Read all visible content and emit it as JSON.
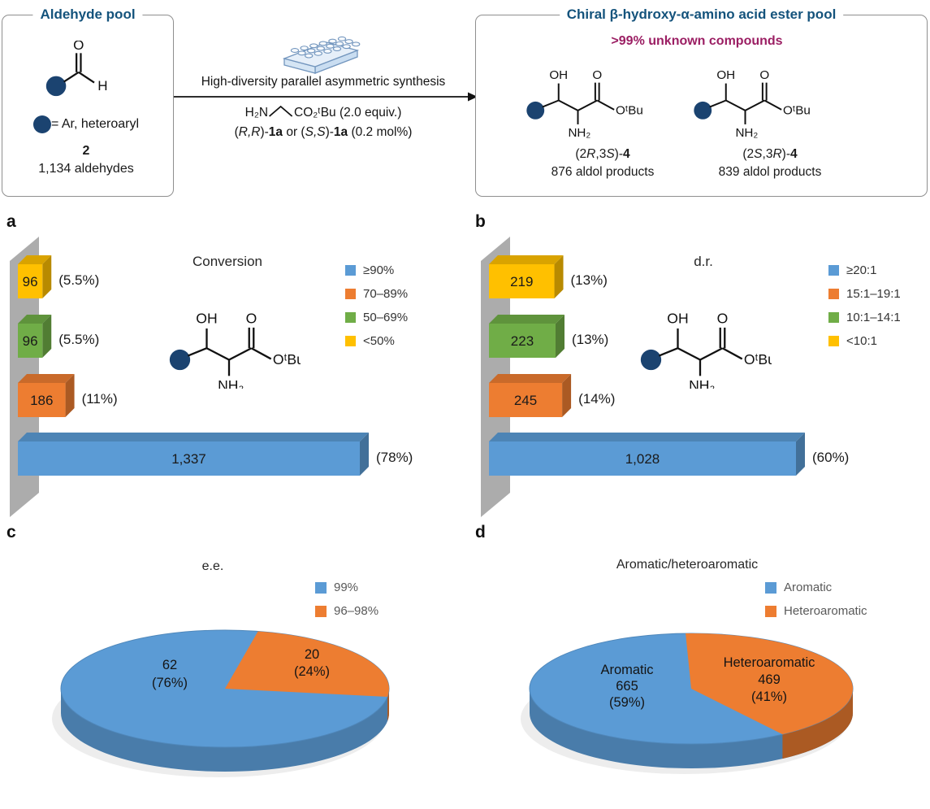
{
  "panels": {
    "a": "a",
    "b": "b",
    "c": "c",
    "d": "d"
  },
  "palette": {
    "blue": "#5B9BD5",
    "orange": "#ED7D31",
    "green": "#70AD47",
    "yellow": "#FFC000",
    "wall_gray": "#ACACAC",
    "navy_dot": "#1B4370",
    "header_blue": "#14537C",
    "magenta": "#9B1E63"
  },
  "scheme": {
    "left_box": {
      "title": "Aldehyde pool",
      "circle_legend": "= Ar, heteroaryl",
      "compound_number": "2",
      "pool_count": "1,134 aldehydes"
    },
    "middle": {
      "condition": "High-diversity parallel asymmetric synthesis",
      "amine": "H₂N",
      "ester": "CO₂ᵗBu (2.0 equiv.)",
      "catalyst_parts": [
        {
          "t": "("
        },
        {
          "t": "R,R",
          "i": true
        },
        {
          "t": ")-"
        },
        {
          "t": "1a",
          "b": true
        },
        {
          "t": " or ("
        },
        {
          "t": "S,S",
          "i": true
        },
        {
          "t": ")-"
        },
        {
          "t": "1a",
          "b": true
        },
        {
          "t": " (0.2 mol%)"
        }
      ]
    },
    "right_box": {
      "title": "Chiral β-hydroxy-α-amino acid ester pool",
      "subtitle": ">99% unknown compounds",
      "products": [
        {
          "label_parts": [
            {
              "t": "(2"
            },
            {
              "t": "R",
              "i": true
            },
            {
              "t": ",3"
            },
            {
              "t": "S",
              "i": true
            },
            {
              "t": ")-"
            },
            {
              "t": "4",
              "b": true
            }
          ],
          "count": "876 aldol products"
        },
        {
          "label_parts": [
            {
              "t": "(2"
            },
            {
              "t": "S",
              "i": true
            },
            {
              "t": ",3"
            },
            {
              "t": "R",
              "i": true
            },
            {
              "t": ")-"
            },
            {
              "t": "4",
              "b": true
            }
          ],
          "count": "839 aldol products"
        }
      ]
    },
    "structure_labels": {
      "oh": "OH",
      "o": "O",
      "otbu": "OᵗBu",
      "nh2": "NH₂",
      "h": "H"
    }
  },
  "chart_data": [
    {
      "panel": "a",
      "type": "bar",
      "style": "3d-horizontal",
      "title": "Conversion",
      "bars": [
        {
          "category": "<50%",
          "value": 96,
          "value_label": "96",
          "pct_label": "(5.5%)",
          "color": "#FFC000"
        },
        {
          "category": "50–69%",
          "value": 96,
          "value_label": "96",
          "pct_label": "(5.5%)",
          "color": "#70AD47"
        },
        {
          "category": "70–89%",
          "value": 186,
          "value_label": "186",
          "pct_label": "(11%)",
          "color": "#ED7D31"
        },
        {
          "category": "≥90%",
          "value": 1337,
          "value_label": "1,337",
          "pct_label": "(78%)",
          "color": "#5B9BD5"
        }
      ],
      "legend": [
        {
          "label": "≥90%",
          "color": "#5B9BD5"
        },
        {
          "label": "70–89%",
          "color": "#ED7D31"
        },
        {
          "label": "50–69%",
          "color": "#70AD47"
        },
        {
          "label": "<50%",
          "color": "#FFC000"
        }
      ],
      "legend_position": "right",
      "grid": false
    },
    {
      "panel": "b",
      "type": "bar",
      "style": "3d-horizontal",
      "title": "d.r.",
      "bars": [
        {
          "category": "<10:1",
          "value": 219,
          "value_label": "219",
          "pct_label": "(13%)",
          "color": "#FFC000"
        },
        {
          "category": "10:1–14:1",
          "value": 223,
          "value_label": "223",
          "pct_label": "(13%)",
          "color": "#70AD47"
        },
        {
          "category": "15:1–19:1",
          "value": 245,
          "value_label": "245",
          "pct_label": "(14%)",
          "color": "#ED7D31"
        },
        {
          "category": "≥20:1",
          "value": 1028,
          "value_label": "1,028",
          "pct_label": "(60%)",
          "color": "#5B9BD5"
        }
      ],
      "legend": [
        {
          "label": "≥20:1",
          "color": "#5B9BD5"
        },
        {
          "label": "15:1–19:1",
          "color": "#ED7D31"
        },
        {
          "label": "10:1–14:1",
          "color": "#70AD47"
        },
        {
          "label": "<10:1",
          "color": "#FFC000"
        }
      ],
      "legend_position": "right",
      "grid": false
    },
    {
      "panel": "c",
      "type": "pie",
      "style": "3d",
      "title": "e.e.",
      "slices": [
        {
          "label": "99%",
          "value": 62,
          "pct": 76,
          "lines": [
            "62",
            "(76%)"
          ],
          "color": "#5B9BD5"
        },
        {
          "label": "96–98%",
          "value": 20,
          "pct": 24,
          "lines": [
            "20",
            "(24%)"
          ],
          "color": "#ED7D31",
          "start_deg": -8,
          "end_deg": 78.4
        }
      ],
      "legend": [
        {
          "label": "99%",
          "color": "#5B9BD5"
        },
        {
          "label": "96–98%",
          "color": "#ED7D31"
        }
      ],
      "legend_position": "right"
    },
    {
      "panel": "d",
      "type": "pie",
      "style": "3d",
      "title": "Aromatic/heteroaromatic",
      "slices": [
        {
          "label": "Aromatic",
          "value": 665,
          "pct": 59,
          "lines": [
            "Aromatic",
            "665",
            "(59%)"
          ],
          "color": "#5B9BD5"
        },
        {
          "label": "Heteroaromatic",
          "value": 469,
          "pct": 41,
          "lines": [
            "Heteroaromatic",
            "469",
            "(41%)"
          ],
          "color": "#ED7D31",
          "start_deg": -55.6,
          "end_deg": 92
        }
      ],
      "legend": [
        {
          "label": "Aromatic",
          "color": "#5B9BD5"
        },
        {
          "label": "Heteroaromatic",
          "color": "#ED7D31"
        }
      ],
      "legend_position": "right"
    }
  ]
}
